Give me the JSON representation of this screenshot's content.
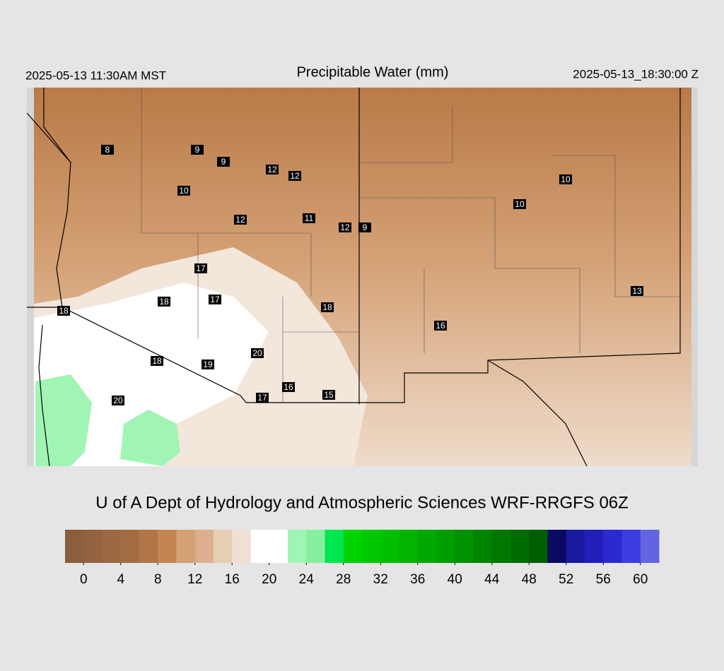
{
  "header": {
    "left": "2025-05-13 11:30AM MST",
    "title": "Precipitable Water (mm)",
    "right": "2025-05-13_18:30:00 Z"
  },
  "map": {
    "labels": [
      8,
      9,
      9,
      12,
      12,
      10,
      10,
      10,
      12,
      11,
      12,
      9,
      17,
      18,
      17,
      18,
      18,
      13,
      16,
      20,
      18,
      19,
      16,
      15,
      17,
      20
    ]
  },
  "credit": "U of A Dept of Hydrology and Atmospheric Sciences WRF-RRGFS 06Z",
  "legend": {
    "range": [
      -2,
      62
    ],
    "ticks": [
      0,
      4,
      8,
      12,
      16,
      20,
      24,
      28,
      32,
      36,
      40,
      44,
      48,
      52,
      56,
      60
    ],
    "colors": [
      "#8b5e3c",
      "#936340",
      "#9b6842",
      "#a36d44",
      "#b07648",
      "#c48650",
      "#d4a074",
      "#dcb08e",
      "#e8cdb5",
      "#f0e0d4",
      "#ffffff",
      "#ffffff",
      "#a0f5b4",
      "#87f0a0",
      "#00e650",
      "#00d200",
      "#00c800",
      "#00be00",
      "#00b400",
      "#00a800",
      "#009c00",
      "#009000",
      "#008400",
      "#007800",
      "#006c00",
      "#005e00",
      "#0a0a64",
      "#1a1aa0",
      "#2020b8",
      "#2a2ad0",
      "#3c3ce0",
      "#6464e0"
    ]
  }
}
